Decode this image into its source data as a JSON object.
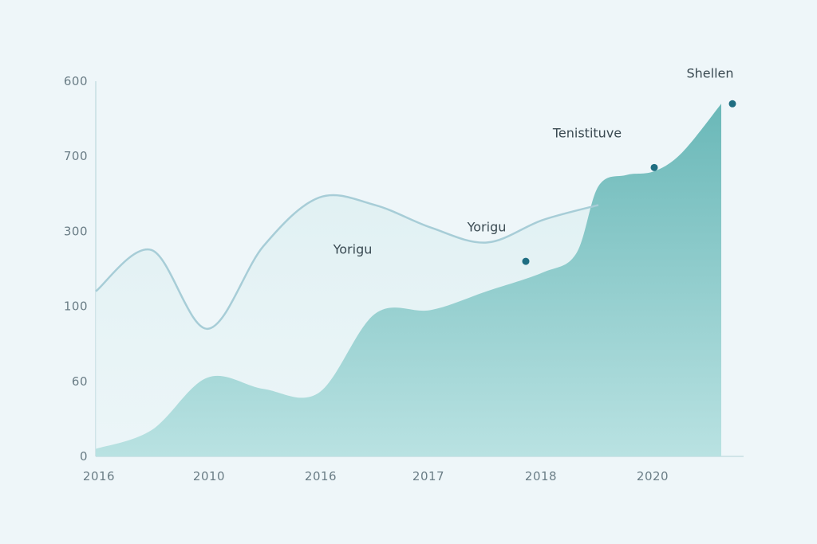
{
  "colors": {
    "background": "#eef6f9",
    "area_fill": "#6ab8b8",
    "area_fill_light": "#b9e2e2",
    "line": "#a7cdd7",
    "marker": "#1f6e82",
    "axis": "#c5dde3",
    "text": "#3a4a52"
  },
  "chart_data": {
    "type": "area",
    "title": "",
    "xlabel": "",
    "ylabel": "",
    "x_tick_labels": [
      "2016",
      "2010",
      "2016",
      "2017",
      "2018",
      "2020"
    ],
    "y_tick_labels": [
      "0",
      "60",
      "100",
      "300",
      "700",
      "600"
    ],
    "y_tick_positions": [
      0,
      1,
      2,
      3,
      4,
      5
    ],
    "ylim": [
      0,
      5
    ],
    "xlim": [
      0,
      5.8
    ],
    "grid": false,
    "legend": "none",
    "series": [
      {
        "type": "area",
        "x": [
          0,
          0.5,
          1.0,
          1.5,
          2.0,
          2.5,
          3.0,
          3.5,
          4.0,
          4.3,
          4.5,
          4.75,
          5.0,
          5.25,
          5.6
        ],
        "values": [
          0.1,
          0.35,
          1.05,
          0.9,
          0.85,
          1.9,
          1.95,
          2.2,
          2.45,
          2.7,
          3.6,
          3.75,
          3.8,
          4.05,
          4.7
        ]
      },
      {
        "type": "line",
        "x": [
          0,
          0.5,
          1.0,
          1.5,
          2.0,
          2.5,
          3.0,
          3.5,
          4.0,
          4.5
        ],
        "values": [
          2.2,
          2.75,
          1.7,
          2.8,
          3.45,
          3.35,
          3.05,
          2.85,
          3.15,
          3.35
        ]
      }
    ],
    "points": [
      {
        "x": 3.85,
        "y": 2.6
      },
      {
        "x": 5.0,
        "y": 3.85
      },
      {
        "x": 5.7,
        "y": 4.7
      }
    ],
    "annotations": [
      {
        "text": "Yorigu",
        "x": 2.3,
        "y": 2.7
      },
      {
        "text": "Yorigu",
        "x": 3.5,
        "y": 3.0
      },
      {
        "text": "Tenistituve",
        "x": 4.4,
        "y": 4.25
      },
      {
        "text": "Shellen",
        "x": 5.5,
        "y": 5.05
      }
    ]
  }
}
